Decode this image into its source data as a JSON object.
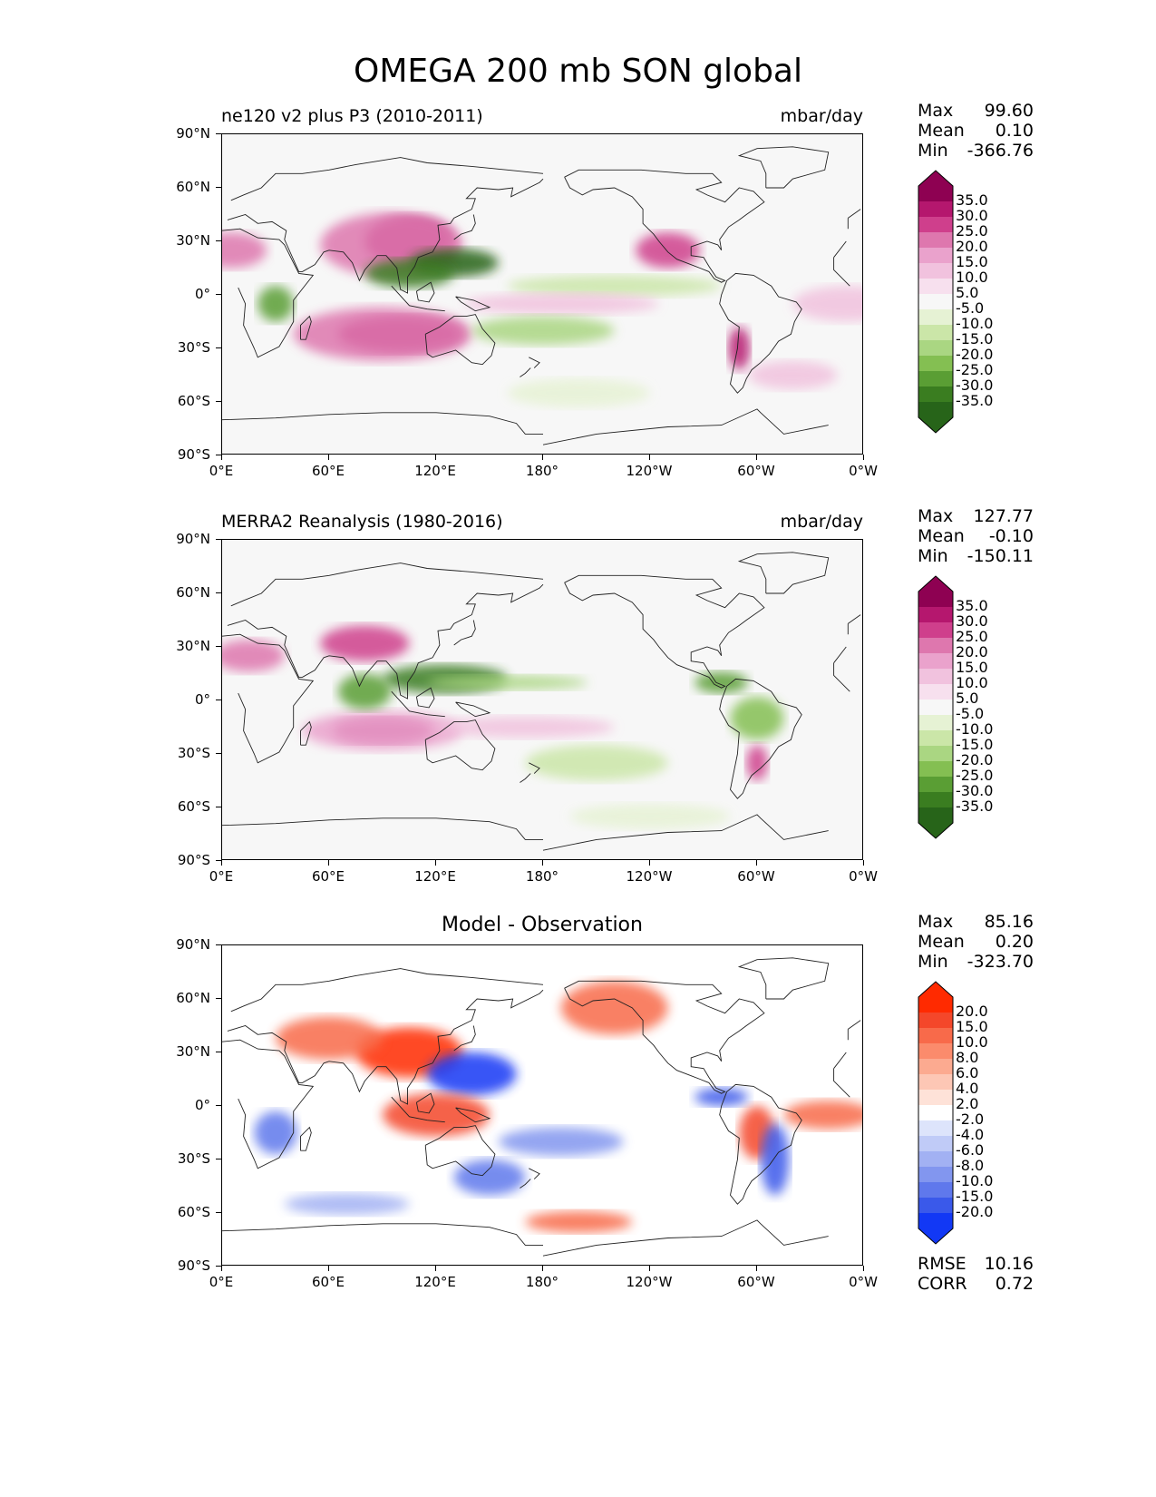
{
  "title": "OMEGA 200 mb SON global",
  "panels": [
    {
      "id": "test",
      "left_title": "ne120 v2 plus P3 (2010-2011)",
      "center_title": "",
      "units": "mbar/day",
      "stats": [
        {
          "label": "Max",
          "value": "99.60"
        },
        {
          "label": "Mean",
          "value": "0.10"
        },
        {
          "label": "Min",
          "value": "-366.76"
        }
      ],
      "colorbar": {
        "labels": [
          "35.0",
          "30.0",
          "25.0",
          "20.0",
          "15.0",
          "10.0",
          "5.0",
          "-5.0",
          "-10.0",
          "-15.0",
          "-20.0",
          "-25.0",
          "-30.0",
          "-35.0"
        ],
        "colors": [
          "#8e0152",
          "#b5176e",
          "#cf3f8c",
          "#de77ae",
          "#eaa2cc",
          "#f1c2de",
          "#f7e0ee",
          "#f7f7f7",
          "#e6f2d4",
          "#cbe6a8",
          "#aad682",
          "#84bf52",
          "#5a9e34",
          "#3a7d20",
          "#276419"
        ],
        "high_arrow": "#8e0152",
        "low_arrow": "#276419"
      },
      "extra_stats": []
    },
    {
      "id": "ref",
      "left_title": "MERRA2 Reanalysis (1980-2016)",
      "center_title": "",
      "units": "mbar/day",
      "stats": [
        {
          "label": "Max",
          "value": "127.77"
        },
        {
          "label": "Mean",
          "value": "-0.10"
        },
        {
          "label": "Min",
          "value": "-150.11"
        }
      ],
      "colorbar": {
        "labels": [
          "35.0",
          "30.0",
          "25.0",
          "20.0",
          "15.0",
          "10.0",
          "5.0",
          "-5.0",
          "-10.0",
          "-15.0",
          "-20.0",
          "-25.0",
          "-30.0",
          "-35.0"
        ],
        "colors": [
          "#8e0152",
          "#b5176e",
          "#cf3f8c",
          "#de77ae",
          "#eaa2cc",
          "#f1c2de",
          "#f7e0ee",
          "#f7f7f7",
          "#e6f2d4",
          "#cbe6a8",
          "#aad682",
          "#84bf52",
          "#5a9e34",
          "#3a7d20",
          "#276419"
        ],
        "high_arrow": "#8e0152",
        "low_arrow": "#276419"
      },
      "extra_stats": []
    },
    {
      "id": "diff",
      "left_title": "",
      "center_title": "Model - Observation",
      "units": "",
      "stats": [
        {
          "label": "Max",
          "value": "85.16"
        },
        {
          "label": "Mean",
          "value": "0.20"
        },
        {
          "label": "Min",
          "value": "-323.70"
        }
      ],
      "colorbar": {
        "labels": [
          "20.0",
          "15.0",
          "10.0",
          "8.0",
          "6.0",
          "4.0",
          "2.0",
          "-2.0",
          "-4.0",
          "-6.0",
          "-8.0",
          "-10.0",
          "-15.0",
          "-20.0"
        ],
        "colors": [
          "#ff2a00",
          "#f4472a",
          "#f86a4a",
          "#fb8b6c",
          "#fcaa90",
          "#fdc7b5",
          "#fee2d8",
          "#ffffff",
          "#dde4fb",
          "#c0cbf7",
          "#a2b1f3",
          "#8296ef",
          "#5f78ec",
          "#3a59ea",
          "#1238f5"
        ],
        "high_arrow": "#ff2a00",
        "low_arrow": "#1238f5"
      },
      "extra_stats": [
        {
          "label": "RMSE",
          "value": "10.16"
        },
        {
          "label": "CORR",
          "value": "0.72"
        }
      ]
    }
  ],
  "axes": {
    "lon_ticks": [
      "0°E",
      "60°E",
      "120°E",
      "180°",
      "120°W",
      "60°W",
      "0°W"
    ],
    "lat_ticks": [
      "90°N",
      "60°N",
      "30°N",
      "0°",
      "30°S",
      "60°S",
      "90°S"
    ]
  }
}
